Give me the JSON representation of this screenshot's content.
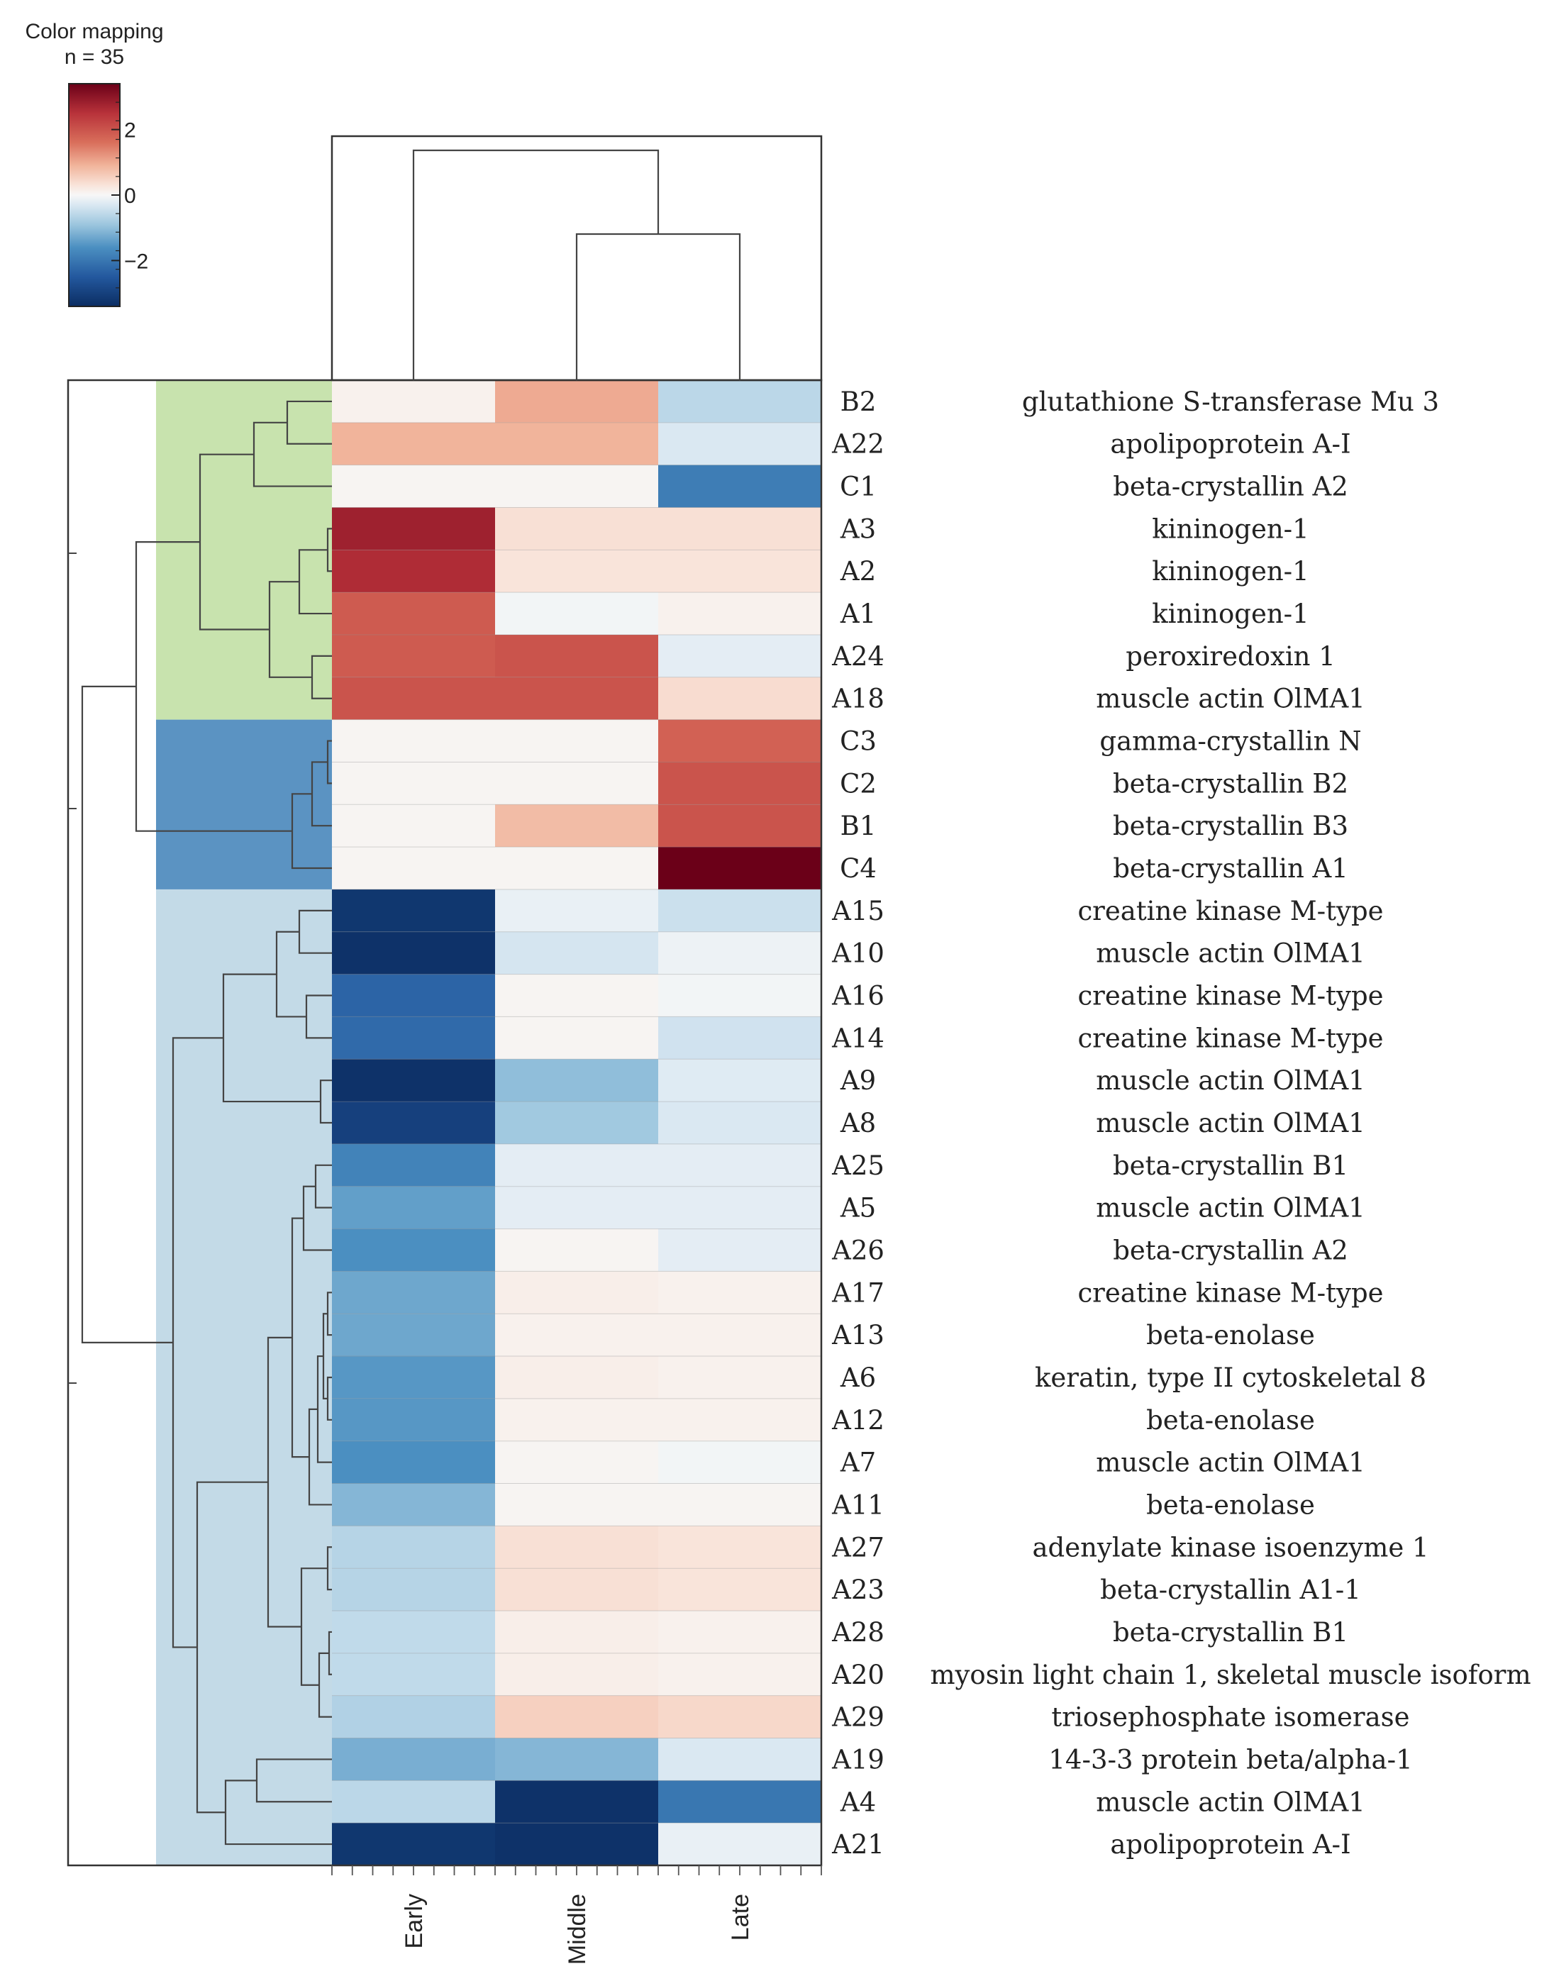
{
  "chart_data": {
    "type": "heatmap",
    "title": "",
    "legend": {
      "title_line1": "Color mapping",
      "title_line2": "n = 35",
      "ticks": [
        {
          "value": 2,
          "label": "2"
        },
        {
          "value": 0,
          "label": "0"
        },
        {
          "value": -2,
          "label": "−2"
        }
      ],
      "range": [
        -3.4,
        3.4
      ],
      "placement": "top-left"
    },
    "colormap": {
      "stops": [
        {
          "value": -3.4,
          "color": "#0b2d62"
        },
        {
          "value": -2.5,
          "color": "#23589e"
        },
        {
          "value": -1.6,
          "color": "#4b8fc1"
        },
        {
          "value": -0.9,
          "color": "#9cc6de"
        },
        {
          "value": -0.3,
          "color": "#dae8f2"
        },
        {
          "value": 0,
          "color": "#f7f7f7"
        },
        {
          "value": 0.3,
          "color": "#f9e4da"
        },
        {
          "value": 0.9,
          "color": "#f1b49b"
        },
        {
          "value": 1.6,
          "color": "#d96f5b"
        },
        {
          "value": 2.5,
          "color": "#b8323a"
        },
        {
          "value": 3.4,
          "color": "#6b0018"
        }
      ]
    },
    "columns": [
      "Early",
      "Middle",
      "Late"
    ],
    "column_dendrogram": {
      "first_merge": [
        "Middle",
        "Late"
      ],
      "then": "Early"
    },
    "cluster_colors": {
      "green": "#c8e3ae",
      "blue": "#5b93c2",
      "lightblue": "#c3dae7"
    },
    "rows": [
      {
        "id": "B2",
        "protein": "glutathione S-transferase Mu 3",
        "values": [
          0.1,
          1.0,
          -0.6
        ],
        "cluster": "green"
      },
      {
        "id": "A22",
        "protein": "apolipoprotein A-I",
        "values": [
          0.9,
          0.9,
          -0.3
        ],
        "cluster": "green"
      },
      {
        "id": "C1",
        "protein": "beta-crystallin A2",
        "values": [
          0.05,
          0.05,
          -1.9
        ],
        "cluster": "green"
      },
      {
        "id": "A3",
        "protein": "kininogen-1",
        "values": [
          2.8,
          0.35,
          0.35
        ],
        "cluster": "green"
      },
      {
        "id": "A2",
        "protein": "kininogen-1",
        "values": [
          2.6,
          0.3,
          0.3
        ],
        "cluster": "green"
      },
      {
        "id": "A1",
        "protein": "kininogen-1",
        "values": [
          1.9,
          -0.05,
          0.1
        ],
        "cluster": "green"
      },
      {
        "id": "A24",
        "protein": "peroxiredoxin 1",
        "values": [
          1.9,
          2.0,
          -0.2
        ],
        "cluster": "green"
      },
      {
        "id": "A18",
        "protein": "muscle actin OlMA1",
        "values": [
          2.0,
          2.0,
          0.4
        ],
        "cluster": "green"
      },
      {
        "id": "C3",
        "protein": "gamma-crystallin N",
        "values": [
          0.05,
          0.05,
          1.8
        ],
        "cluster": "blue"
      },
      {
        "id": "C2",
        "protein": "beta-crystallin B2",
        "values": [
          0.05,
          0.05,
          2.0
        ],
        "cluster": "blue"
      },
      {
        "id": "B1",
        "protein": "beta-crystallin B3",
        "values": [
          0.05,
          0.8,
          2.0
        ],
        "cluster": "blue"
      },
      {
        "id": "C4",
        "protein": "beta-crystallin A1",
        "values": [
          0.05,
          0.05,
          3.4
        ],
        "cluster": "blue"
      },
      {
        "id": "A15",
        "protein": "creatine kinase M-type",
        "values": [
          -3.2,
          -0.15,
          -0.45
        ],
        "cluster": "lightblue"
      },
      {
        "id": "A10",
        "protein": "muscle actin OlMA1",
        "values": [
          -3.3,
          -0.35,
          -0.1
        ],
        "cluster": "lightblue"
      },
      {
        "id": "A16",
        "protein": "creatine kinase M-type",
        "values": [
          -2.3,
          0.05,
          -0.05
        ],
        "cluster": "lightblue"
      },
      {
        "id": "A14",
        "protein": "creatine kinase M-type",
        "values": [
          -2.2,
          0.05,
          -0.4
        ],
        "cluster": "lightblue"
      },
      {
        "id": "A9",
        "protein": "muscle actin OlMA1",
        "values": [
          -3.3,
          -1.0,
          -0.25
        ],
        "cluster": "lightblue"
      },
      {
        "id": "A8",
        "protein": "muscle actin OlMA1",
        "values": [
          -3.0,
          -0.85,
          -0.3
        ],
        "cluster": "lightblue"
      },
      {
        "id": "A25",
        "protein": "beta-crystallin B1",
        "values": [
          -1.8,
          -0.2,
          -0.2
        ],
        "cluster": "lightblue"
      },
      {
        "id": "A5",
        "protein": "muscle actin OlMA1",
        "values": [
          -1.4,
          -0.2,
          -0.2
        ],
        "cluster": "lightblue"
      },
      {
        "id": "A26",
        "protein": "beta-crystallin A2",
        "values": [
          -1.6,
          0.05,
          -0.2
        ],
        "cluster": "lightblue"
      },
      {
        "id": "A17",
        "protein": "creatine kinase M-type",
        "values": [
          -1.3,
          0.15,
          0.1
        ],
        "cluster": "lightblue"
      },
      {
        "id": "A13",
        "protein": "beta-enolase",
        "values": [
          -1.3,
          0.1,
          0.1
        ],
        "cluster": "lightblue"
      },
      {
        "id": "A6",
        "protein": "keratin, type II cytoskeletal 8",
        "values": [
          -1.5,
          0.15,
          0.1
        ],
        "cluster": "lightblue"
      },
      {
        "id": "A12",
        "protein": "beta-enolase",
        "values": [
          -1.5,
          0.1,
          0.1
        ],
        "cluster": "lightblue"
      },
      {
        "id": "A7",
        "protein": "muscle actin OlMA1",
        "values": [
          -1.6,
          0.05,
          -0.05
        ],
        "cluster": "lightblue"
      },
      {
        "id": "A11",
        "protein": "beta-enolase",
        "values": [
          -1.1,
          0.05,
          0.05
        ],
        "cluster": "lightblue"
      },
      {
        "id": "A27",
        "protein": "adenylate kinase isoenzyme 1",
        "values": [
          -0.65,
          0.35,
          0.3
        ],
        "cluster": "lightblue"
      },
      {
        "id": "A23",
        "protein": "beta-crystallin A1-1",
        "values": [
          -0.65,
          0.35,
          0.3
        ],
        "cluster": "lightblue"
      },
      {
        "id": "A28",
        "protein": "beta-crystallin B1",
        "values": [
          -0.55,
          0.15,
          0.1
        ],
        "cluster": "lightblue"
      },
      {
        "id": "A20",
        "protein": "myosin light chain 1, skeletal muscle isoform",
        "values": [
          -0.55,
          0.15,
          0.1
        ],
        "cluster": "lightblue"
      },
      {
        "id": "A29",
        "protein": "triosephosphate isomerase",
        "values": [
          -0.7,
          0.55,
          0.45
        ],
        "cluster": "lightblue"
      },
      {
        "id": "A19",
        "protein": "14-3-3 protein beta/alpha-1",
        "values": [
          -1.2,
          -1.1,
          -0.3
        ],
        "cluster": "lightblue"
      },
      {
        "id": "A4",
        "protein": "muscle actin OlMA1",
        "values": [
          -0.6,
          -3.3,
          -2.0
        ],
        "cluster": "lightblue"
      },
      {
        "id": "A21",
        "protein": "apolipoprotein A-I",
        "values": [
          -3.2,
          -3.3,
          -0.15
        ],
        "cluster": "lightblue"
      }
    ]
  }
}
